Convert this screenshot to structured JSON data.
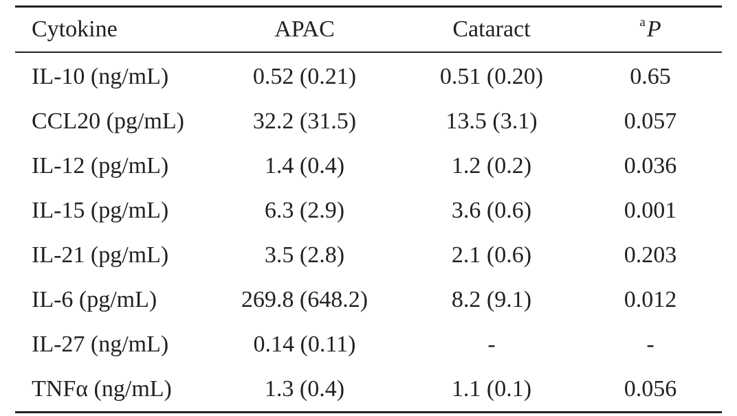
{
  "table": {
    "headers": {
      "cytokine": "Cytokine",
      "apac": "APAC",
      "cataract": "Cataract",
      "p_superscript": "a",
      "p_symbol": "P"
    },
    "rows": [
      {
        "cytokine": "IL-10 (ng/mL)",
        "apac": "0.52 (0.21)",
        "cataract": "0.51 (0.20)",
        "p": "0.65"
      },
      {
        "cytokine": "CCL20 (pg/mL)",
        "apac": "32.2 (31.5)",
        "cataract": "13.5 (3.1)",
        "p": "0.057"
      },
      {
        "cytokine": "IL-12 (pg/mL)",
        "apac": "1.4 (0.4)",
        "cataract": "1.2 (0.2)",
        "p": "0.036"
      },
      {
        "cytokine": "IL-15 (pg/mL)",
        "apac": "6.3 (2.9)",
        "cataract": "3.6 (0.6)",
        "p": "0.001"
      },
      {
        "cytokine": "IL-21 (pg/mL)",
        "apac": "3.5 (2.8)",
        "cataract": "2.1 (0.6)",
        "p": "0.203"
      },
      {
        "cytokine": "IL-6 (pg/mL)",
        "apac": "269.8 (648.2)",
        "cataract": "8.2 (9.1)",
        "p": "0.012"
      },
      {
        "cytokine": "IL-27 (ng/mL)",
        "apac": "0.14 (0.11)",
        "cataract": "-",
        "p": "-"
      },
      {
        "cytokine": "TNFα (ng/mL)",
        "apac": "1.3 (0.4)",
        "cataract": "1.1 (0.1)",
        "p": "0.056"
      }
    ]
  }
}
